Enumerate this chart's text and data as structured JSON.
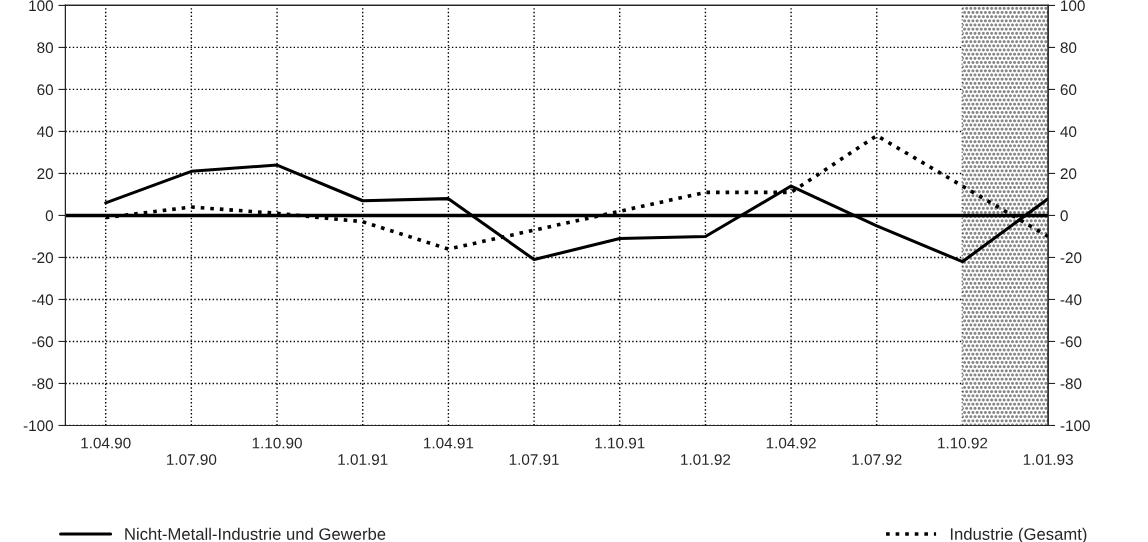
{
  "chart_data": {
    "type": "line",
    "categories": [
      "1.04.90",
      "1.07.90",
      "1.10.90",
      "1.01.91",
      "1.04.91",
      "1.07.91",
      "1.10.91",
      "1.01.92",
      "1.04.92",
      "1.07.92",
      "1.10.92",
      "1.01.93"
    ],
    "series": [
      {
        "name": "Nicht-Metall-Industrie und Gewerbe",
        "color": "#000000",
        "line_style": "solid",
        "values": [
          6,
          21,
          24,
          7,
          8,
          -21,
          -11,
          -10,
          14,
          -5,
          -22,
          8
        ]
      },
      {
        "name": "Industrie (Gesamt)",
        "color": "#000000",
        "line_style": "dotted",
        "values": [
          -1,
          4,
          1,
          -3,
          -16,
          -7,
          2,
          11,
          11,
          38,
          14,
          -10
        ]
      }
    ],
    "ylim": [
      -100,
      100
    ],
    "yticks": [
      -100,
      -80,
      -60,
      -40,
      -20,
      0,
      20,
      40,
      60,
      80,
      100
    ],
    "y2lim": [
      -100,
      100
    ],
    "y2ticks": [
      -100,
      -80,
      -60,
      -40,
      -20,
      0,
      20,
      40,
      60,
      80,
      100
    ],
    "ref_lines": [
      {
        "axis": "y",
        "value": 0,
        "color": "#000000",
        "line_style": "solid"
      }
    ],
    "bands": [
      {
        "axis": "x",
        "from": "1.10.92",
        "to": "1.01.93",
        "color": "#888888"
      }
    ],
    "grid": true,
    "legend": "bottom",
    "marker": "none"
  }
}
